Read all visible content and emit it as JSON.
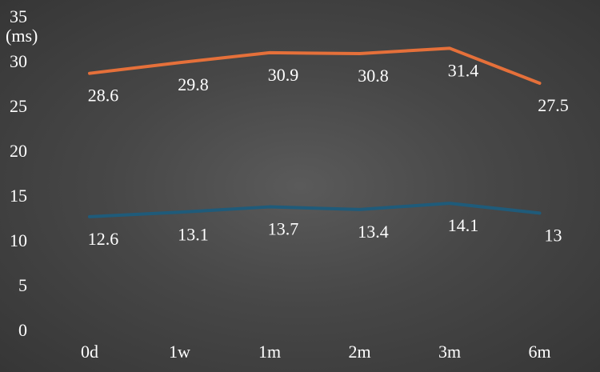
{
  "chart_data": {
    "type": "line",
    "categories": [
      "0d",
      "1w",
      "1m",
      "2m",
      "3m",
      "6m"
    ],
    "series": [
      {
        "values": [
          28.6,
          29.8,
          30.9,
          30.8,
          31.4,
          27.5
        ],
        "color": "#e5703a"
      },
      {
        "values": [
          12.6,
          13.1,
          13.7,
          13.4,
          14.1,
          13
        ],
        "color": "#1f5b7a"
      }
    ],
    "ylabel": "(ms)",
    "ylim": [
      0,
      35
    ],
    "yticks": [
      0,
      5,
      10,
      15,
      20,
      25,
      30,
      35
    ],
    "grid": false,
    "legend": "none"
  },
  "colors": {
    "background": "#474747",
    "text": "#ffffff"
  }
}
